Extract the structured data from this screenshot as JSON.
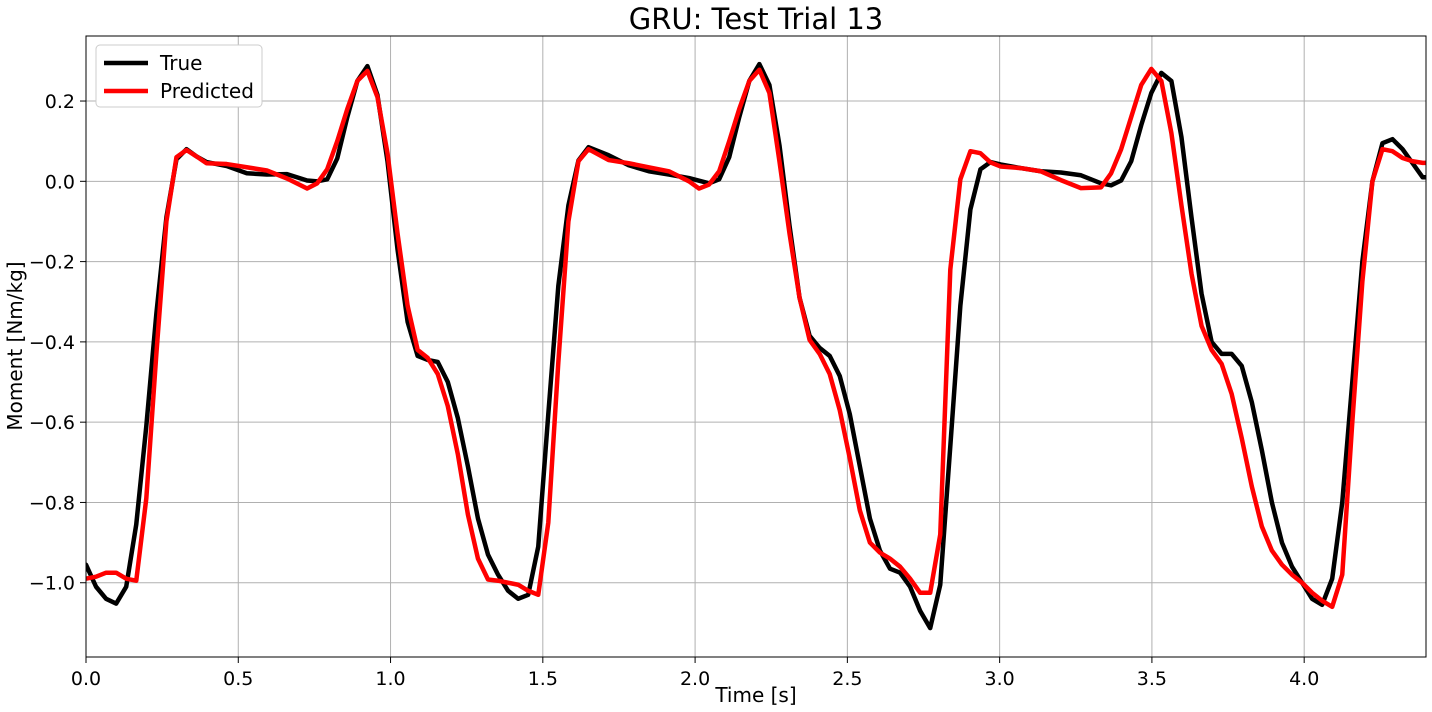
{
  "chart_data": {
    "type": "line",
    "title": "GRU: Test Trial 13",
    "xlabel": "Time [s]",
    "ylabel": "Moment [Nm/kg]",
    "xlim": [
      0,
      4.4
    ],
    "ylim": [
      -1.185,
      0.362
    ],
    "xticks": [
      0.0,
      0.5,
      1.0,
      1.5,
      2.0,
      2.5,
      3.0,
      3.5,
      4.0
    ],
    "xtick_labels": [
      "0.0",
      "0.5",
      "1.0",
      "1.5",
      "2.0",
      "2.5",
      "3.0",
      "3.5",
      "4.0"
    ],
    "yticks": [
      0.2,
      0.0,
      -0.2,
      -0.4,
      -0.6,
      -0.8,
      -1.0
    ],
    "ytick_labels": [
      "0.2",
      "0.0",
      "−0.2",
      "−0.4",
      "−0.6",
      "−0.8",
      "−1.0"
    ],
    "grid": true,
    "legend_position": "top-left",
    "series": [
      {
        "name": "True",
        "color": "#000000",
        "x": [
          0.0,
          0.033,
          0.066,
          0.099,
          0.132,
          0.165,
          0.198,
          0.231,
          0.264,
          0.297,
          0.33,
          0.363,
          0.396,
          0.462,
          0.528,
          0.594,
          0.66,
          0.726,
          0.759,
          0.792,
          0.825,
          0.858,
          0.891,
          0.924,
          0.957,
          0.99,
          1.023,
          1.056,
          1.089,
          1.122,
          1.155,
          1.188,
          1.221,
          1.254,
          1.287,
          1.32,
          1.353,
          1.386,
          1.419,
          1.452,
          1.485,
          1.518,
          1.551,
          1.584,
          1.617,
          1.65,
          1.716,
          1.782,
          1.848,
          1.914,
          1.98,
          2.046,
          2.079,
          2.112,
          2.145,
          2.178,
          2.211,
          2.244,
          2.277,
          2.31,
          2.343,
          2.376,
          2.409,
          2.442,
          2.475,
          2.508,
          2.541,
          2.574,
          2.607,
          2.64,
          2.673,
          2.706,
          2.739,
          2.772,
          2.805,
          2.838,
          2.871,
          2.904,
          2.937,
          2.97,
          3.003,
          3.069,
          3.135,
          3.201,
          3.267,
          3.333,
          3.366,
          3.399,
          3.432,
          3.465,
          3.498,
          3.531,
          3.564,
          3.597,
          3.63,
          3.663,
          3.696,
          3.729,
          3.762,
          3.795,
          3.828,
          3.861,
          3.894,
          3.927,
          3.96,
          3.993,
          4.026,
          4.059,
          4.092,
          4.125,
          4.158,
          4.191,
          4.224,
          4.257,
          4.29,
          4.323,
          4.356,
          4.389,
          4.4
        ],
        "y": [
          -0.955,
          -1.01,
          -1.04,
          -1.052,
          -1.01,
          -0.855,
          -0.61,
          -0.33,
          -0.09,
          0.055,
          0.08,
          0.062,
          0.048,
          0.038,
          0.02,
          0.017,
          0.018,
          0.002,
          0.0,
          0.005,
          0.057,
          0.16,
          0.25,
          0.287,
          0.215,
          0.05,
          -0.17,
          -0.35,
          -0.435,
          -0.445,
          -0.45,
          -0.5,
          -0.59,
          -0.71,
          -0.84,
          -0.93,
          -0.98,
          -1.02,
          -1.04,
          -1.03,
          -0.91,
          -0.58,
          -0.26,
          -0.06,
          0.052,
          0.085,
          0.065,
          0.04,
          0.025,
          0.017,
          0.008,
          -0.005,
          0.005,
          0.06,
          0.16,
          0.25,
          0.292,
          0.24,
          0.09,
          -0.11,
          -0.29,
          -0.385,
          -0.415,
          -0.435,
          -0.485,
          -0.58,
          -0.71,
          -0.84,
          -0.92,
          -0.965,
          -0.975,
          -1.01,
          -1.07,
          -1.113,
          -1.005,
          -0.66,
          -0.31,
          -0.07,
          0.03,
          0.048,
          0.042,
          0.033,
          0.025,
          0.022,
          0.015,
          -0.005,
          -0.01,
          0.002,
          0.05,
          0.14,
          0.22,
          0.27,
          0.25,
          0.11,
          -0.09,
          -0.28,
          -0.4,
          -0.43,
          -0.43,
          -0.46,
          -0.55,
          -0.67,
          -0.8,
          -0.9,
          -0.96,
          -1.0,
          -1.04,
          -1.055,
          -0.99,
          -0.8,
          -0.5,
          -0.2,
          0.0,
          0.095,
          0.105,
          0.08,
          0.045,
          0.01,
          0.01
        ]
      },
      {
        "name": "Predicted",
        "color": "#ff0000",
        "x": [
          0.0,
          0.033,
          0.066,
          0.099,
          0.132,
          0.165,
          0.198,
          0.231,
          0.264,
          0.297,
          0.33,
          0.363,
          0.396,
          0.462,
          0.528,
          0.594,
          0.66,
          0.726,
          0.759,
          0.792,
          0.825,
          0.858,
          0.891,
          0.924,
          0.957,
          0.99,
          1.023,
          1.056,
          1.089,
          1.122,
          1.155,
          1.188,
          1.221,
          1.254,
          1.287,
          1.32,
          1.353,
          1.386,
          1.419,
          1.452,
          1.485,
          1.518,
          1.551,
          1.584,
          1.617,
          1.65,
          1.716,
          1.782,
          1.848,
          1.914,
          1.98,
          2.013,
          2.046,
          2.079,
          2.112,
          2.145,
          2.178,
          2.211,
          2.244,
          2.277,
          2.31,
          2.343,
          2.376,
          2.409,
          2.442,
          2.475,
          2.508,
          2.541,
          2.574,
          2.607,
          2.64,
          2.673,
          2.706,
          2.739,
          2.772,
          2.805,
          2.838,
          2.871,
          2.904,
          2.937,
          2.97,
          3.003,
          3.069,
          3.135,
          3.201,
          3.267,
          3.333,
          3.366,
          3.399,
          3.432,
          3.465,
          3.498,
          3.531,
          3.564,
          3.597,
          3.63,
          3.663,
          3.696,
          3.729,
          3.762,
          3.795,
          3.828,
          3.861,
          3.894,
          3.927,
          3.96,
          3.993,
          4.026,
          4.059,
          4.092,
          4.125,
          4.158,
          4.191,
          4.224,
          4.257,
          4.29,
          4.323,
          4.356,
          4.389,
          4.4
        ],
        "y": [
          -0.99,
          -0.985,
          -0.975,
          -0.975,
          -0.99,
          -0.995,
          -0.79,
          -0.43,
          -0.1,
          0.06,
          0.078,
          0.062,
          0.045,
          0.043,
          0.035,
          0.027,
          0.007,
          -0.018,
          -0.005,
          0.03,
          0.1,
          0.18,
          0.25,
          0.275,
          0.21,
          0.07,
          -0.13,
          -0.31,
          -0.42,
          -0.44,
          -0.48,
          -0.56,
          -0.68,
          -0.83,
          -0.94,
          -0.992,
          -0.995,
          -1.0,
          -1.005,
          -1.02,
          -1.03,
          -0.85,
          -0.45,
          -0.1,
          0.05,
          0.08,
          0.053,
          0.045,
          0.035,
          0.025,
          0.0,
          -0.018,
          -0.008,
          0.025,
          0.1,
          0.18,
          0.25,
          0.278,
          0.22,
          0.05,
          -0.13,
          -0.29,
          -0.395,
          -0.43,
          -0.48,
          -0.57,
          -0.69,
          -0.82,
          -0.9,
          -0.925,
          -0.94,
          -0.96,
          -0.99,
          -1.025,
          -1.025,
          -0.88,
          -0.22,
          0.005,
          0.075,
          0.07,
          0.047,
          0.037,
          0.033,
          0.025,
          0.003,
          -0.017,
          -0.015,
          0.02,
          0.08,
          0.16,
          0.24,
          0.28,
          0.25,
          0.12,
          -0.06,
          -0.23,
          -0.36,
          -0.42,
          -0.455,
          -0.53,
          -0.64,
          -0.76,
          -0.86,
          -0.92,
          -0.955,
          -0.98,
          -1.0,
          -1.025,
          -1.045,
          -1.06,
          -0.98,
          -0.6,
          -0.25,
          0.0,
          0.08,
          0.075,
          0.058,
          0.05,
          0.046,
          0.046
        ]
      }
    ]
  }
}
